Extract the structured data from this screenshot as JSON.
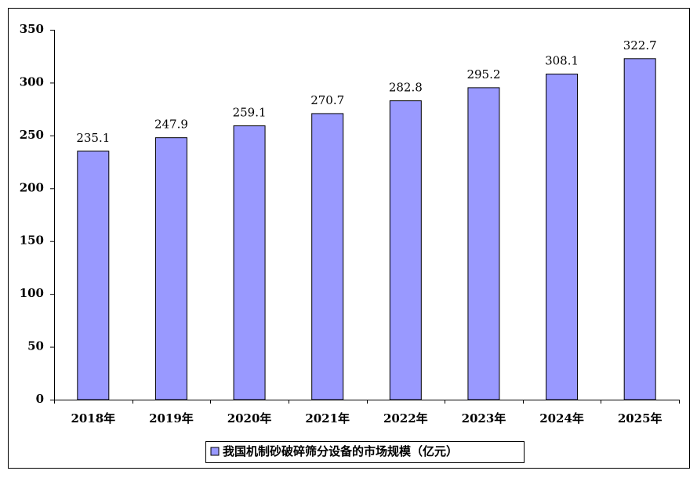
{
  "chart_data": {
    "type": "bar",
    "categories": [
      "2018年",
      "2019年",
      "2020年",
      "2021年",
      "2022年",
      "2023年",
      "2024年",
      "2025年"
    ],
    "series": [
      {
        "name": "我国机制砂破碎筛分设备的市场规模（亿元）",
        "color": "#9999ff",
        "values": [
          235.1,
          247.9,
          259.1,
          270.7,
          282.8,
          295.2,
          308.1,
          322.7
        ]
      }
    ],
    "ylim": [
      0,
      350
    ],
    "yticks": [
      0,
      50,
      100,
      150,
      200,
      250,
      300,
      350
    ],
    "grid": false,
    "legend": "bottom"
  }
}
